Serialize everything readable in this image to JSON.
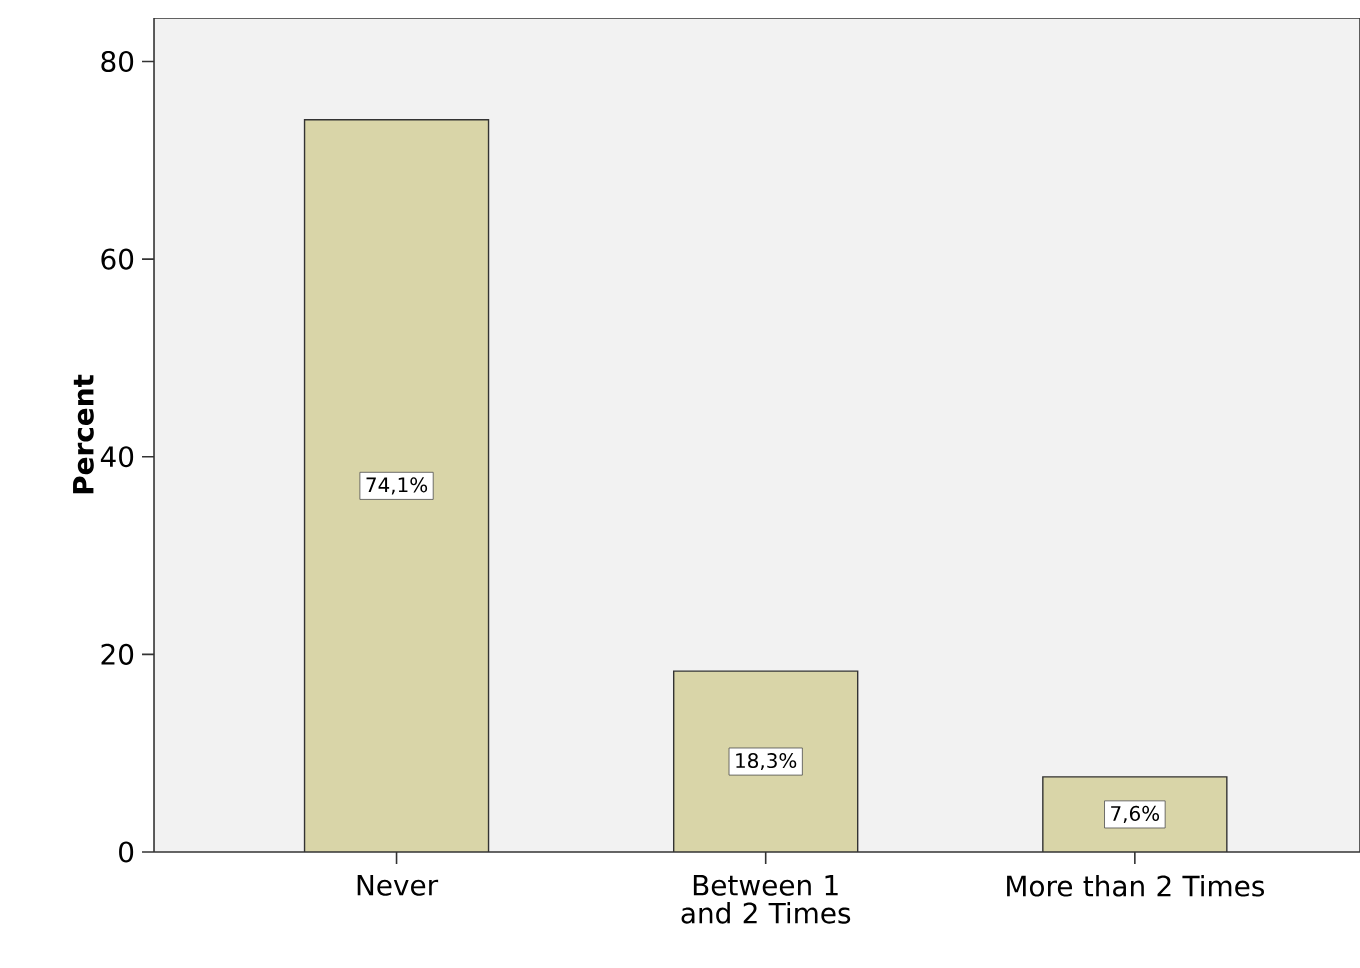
{
  "chart_data": {
    "type": "bar",
    "ylabel": "Percent",
    "categories": [
      "Never",
      "Between 1 and 2 Times",
      "More than 2 Times"
    ],
    "values": [
      74.1,
      18.3,
      7.6
    ],
    "value_labels": [
      "74,1%",
      "18,3%",
      "7,6%"
    ],
    "color": "#d9d5a8",
    "ylim": [
      0,
      84.4
    ],
    "yticks": [
      0,
      20,
      40,
      60,
      80
    ],
    "grid": false
  }
}
